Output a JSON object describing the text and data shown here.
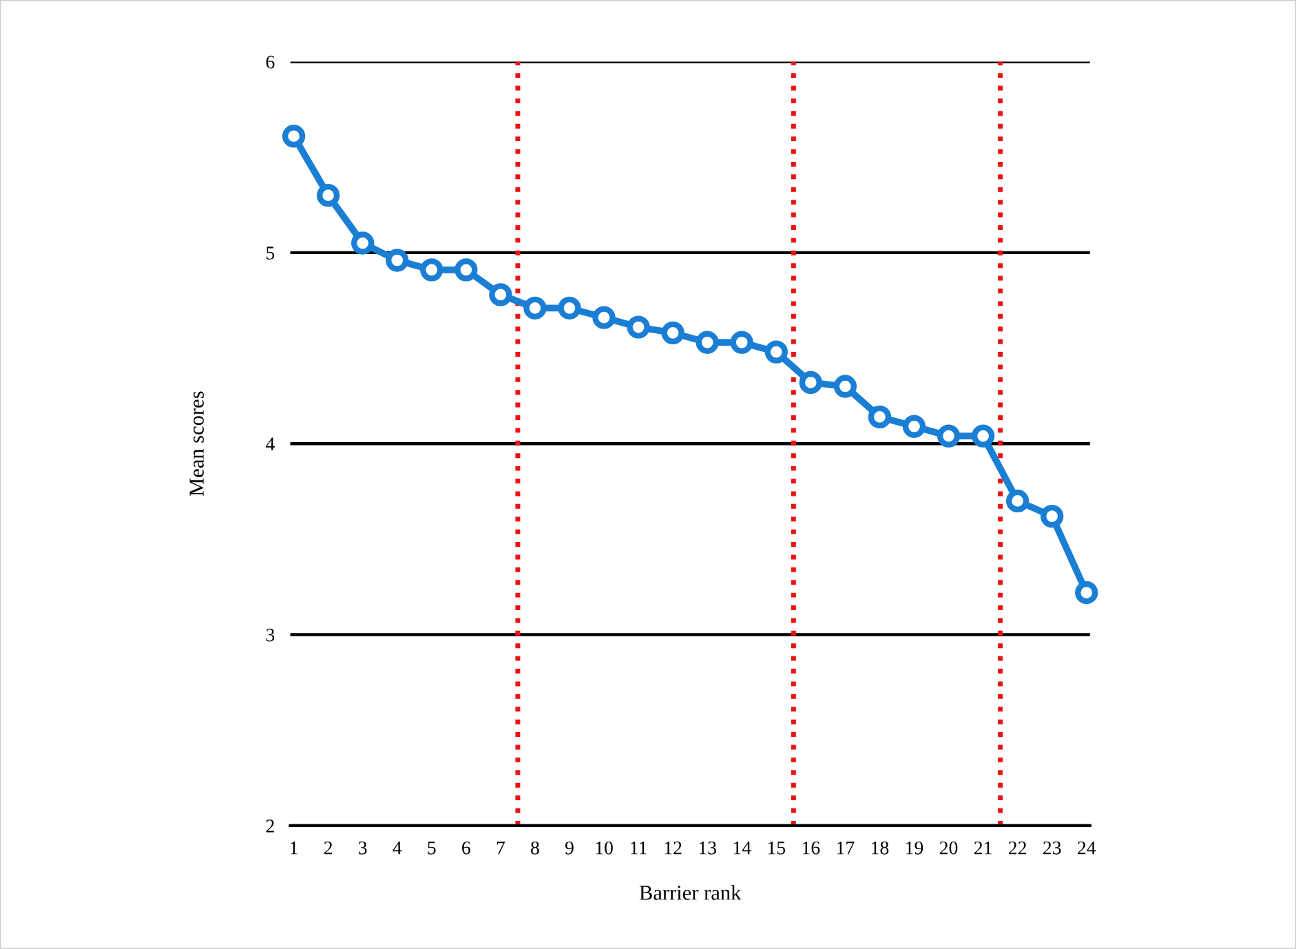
{
  "chart_data": {
    "type": "line",
    "xlabel": "Barrier rank",
    "ylabel": "Mean scores",
    "x": [
      1,
      2,
      3,
      4,
      5,
      6,
      7,
      8,
      9,
      10,
      11,
      12,
      13,
      14,
      15,
      16,
      17,
      18,
      19,
      20,
      21,
      22,
      23,
      24
    ],
    "series": [
      {
        "color": "#1a7fd4",
        "values": [
          5.61,
          5.3,
          5.05,
          4.96,
          4.91,
          4.91,
          4.78,
          4.71,
          4.71,
          4.66,
          4.61,
          4.58,
          4.53,
          4.53,
          4.48,
          4.32,
          4.3,
          4.14,
          4.09,
          4.04,
          4.04,
          3.7,
          3.62,
          3.22
        ]
      }
    ],
    "xlim": [
      0.9,
      24.1
    ],
    "xticks": [
      1,
      2,
      3,
      4,
      5,
      6,
      7,
      8,
      9,
      10,
      11,
      12,
      13,
      14,
      15,
      16,
      17,
      18,
      19,
      20,
      21,
      22,
      23,
      24
    ],
    "ylim": [
      2,
      6
    ],
    "yticks": [
      2,
      3,
      4,
      5,
      6
    ],
    "grid": "y",
    "marker": "circle",
    "line_style": "solid",
    "ref_lines": [
      {
        "axis": "x",
        "value": 7.5,
        "color": "#ee1111",
        "line_style": "dotted"
      },
      {
        "axis": "x",
        "value": 15.5,
        "color": "#ee1111",
        "line_style": "dotted"
      },
      {
        "axis": "x",
        "value": 21.5,
        "color": "#ee1111",
        "line_style": "dotted"
      }
    ]
  }
}
